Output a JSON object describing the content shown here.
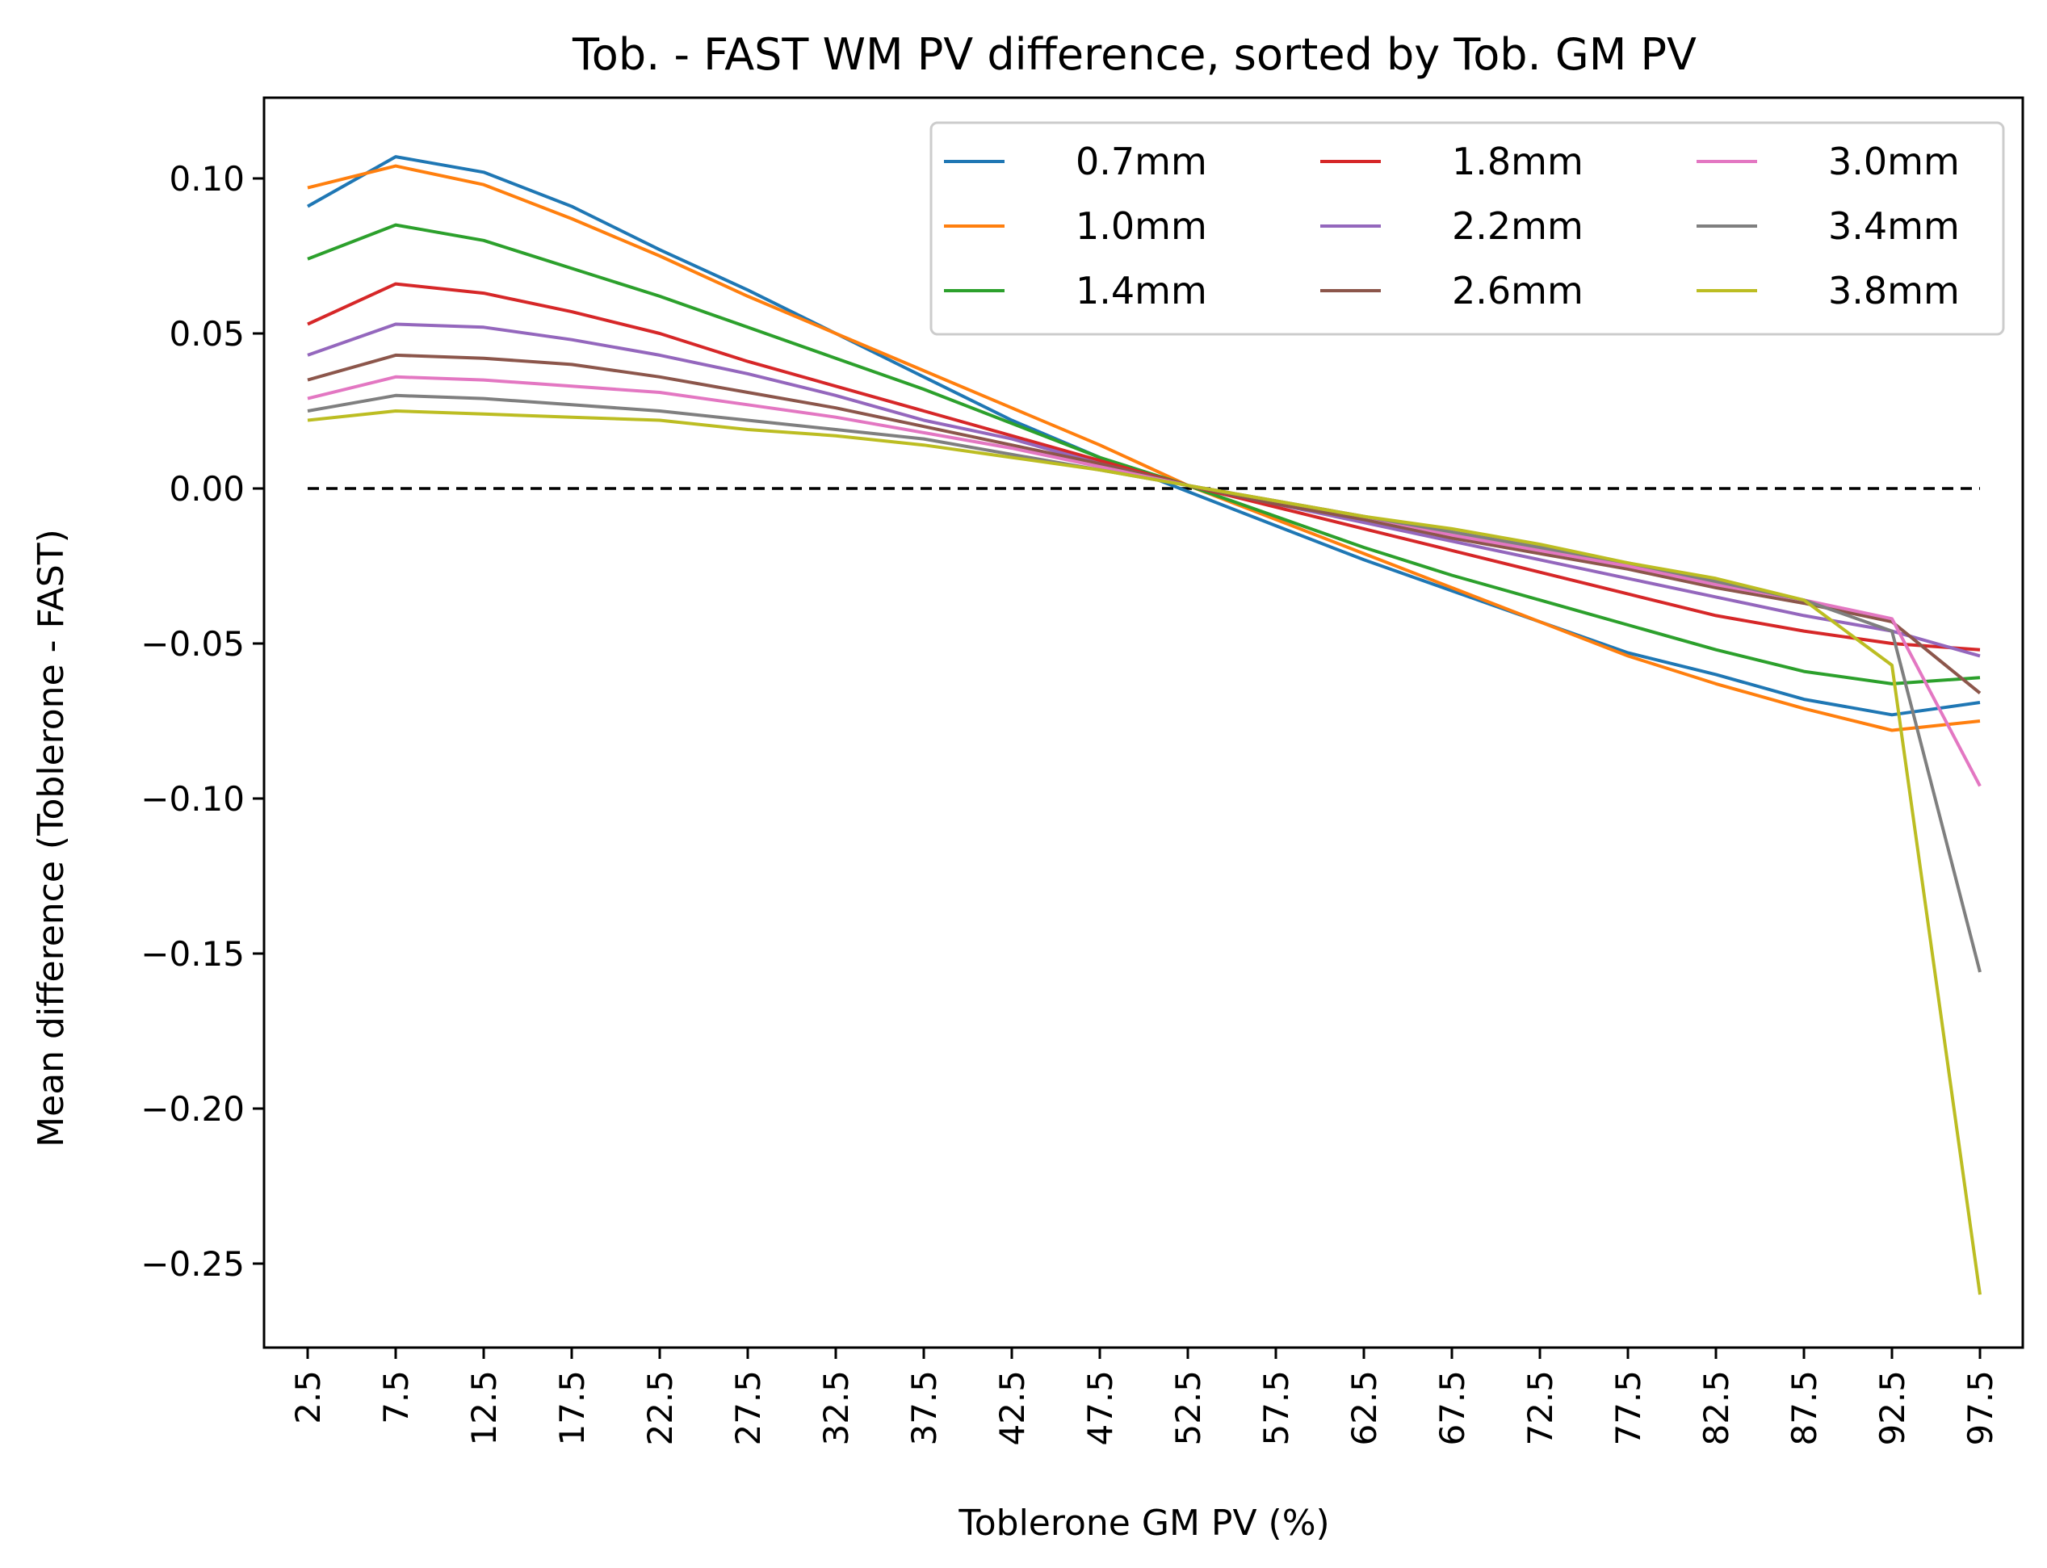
{
  "chart_data": {
    "type": "line",
    "title": "Tob. - FAST WM PV difference, sorted by Tob. GM PV",
    "xlabel": "Toblerone GM PV (%)",
    "ylabel": "Mean difference (Toblerone - FAST)",
    "ylim": [
      -0.28,
      0.125
    ],
    "grid": false,
    "legend_placement": "top-right",
    "legend_columns": 3,
    "x": [
      2.5,
      7.5,
      12.5,
      17.5,
      22.5,
      27.5,
      32.5,
      37.5,
      42.5,
      47.5,
      52.5,
      57.5,
      62.5,
      67.5,
      72.5,
      77.5,
      82.5,
      87.5,
      92.5,
      97.5
    ],
    "x_tick_labels": [
      "2.5",
      "7.5",
      "12.5",
      "17.5",
      "22.5",
      "27.5",
      "32.5",
      "37.5",
      "42.5",
      "47.5",
      "52.5",
      "57.5",
      "62.5",
      "67.5",
      "72.5",
      "77.5",
      "82.5",
      "87.5",
      "92.5",
      "97.5"
    ],
    "y_ticks": [
      0.1,
      0.05,
      0.0,
      -0.05,
      -0.1,
      -0.15,
      -0.2,
      -0.25
    ],
    "y_tick_labels": [
      "0.10",
      "0.05",
      "0.00",
      "−0.05",
      "−0.10",
      "−0.15",
      "−0.20",
      "−0.25"
    ],
    "reference_line": {
      "y": 0.0,
      "style": "dashed",
      "color": "#000000"
    },
    "series": [
      {
        "name": "0.7mm",
        "color": "#1f77b4",
        "values": [
          0.091,
          0.107,
          0.102,
          0.091,
          0.077,
          0.064,
          0.05,
          0.036,
          0.022,
          0.01,
          -0.001,
          -0.012,
          -0.023,
          -0.033,
          -0.043,
          -0.053,
          -0.06,
          -0.068,
          -0.073,
          -0.069
        ]
      },
      {
        "name": "1.0mm",
        "color": "#ff7f0e",
        "values": [
          0.097,
          0.104,
          0.098,
          0.087,
          0.075,
          0.062,
          0.05,
          0.038,
          0.026,
          0.014,
          0.001,
          -0.01,
          -0.021,
          -0.032,
          -0.043,
          -0.054,
          -0.063,
          -0.071,
          -0.078,
          -0.075
        ]
      },
      {
        "name": "1.4mm",
        "color": "#2ca02c",
        "values": [
          0.074,
          0.085,
          0.08,
          0.071,
          0.062,
          0.052,
          0.042,
          0.032,
          0.021,
          0.01,
          0.001,
          -0.009,
          -0.019,
          -0.028,
          -0.036,
          -0.044,
          -0.052,
          -0.059,
          -0.063,
          -0.061
        ]
      },
      {
        "name": "1.8mm",
        "color": "#d62728",
        "values": [
          0.053,
          0.066,
          0.063,
          0.057,
          0.05,
          0.041,
          0.033,
          0.025,
          0.017,
          0.009,
          0.001,
          -0.006,
          -0.013,
          -0.02,
          -0.027,
          -0.034,
          -0.041,
          -0.046,
          -0.05,
          -0.052
        ]
      },
      {
        "name": "2.2mm",
        "color": "#9467bd",
        "values": [
          0.043,
          0.053,
          0.052,
          0.048,
          0.043,
          0.037,
          0.03,
          0.022,
          0.016,
          0.008,
          0.001,
          -0.005,
          -0.011,
          -0.017,
          -0.023,
          -0.029,
          -0.035,
          -0.041,
          -0.046,
          -0.054
        ]
      },
      {
        "name": "2.6mm",
        "color": "#8c564b",
        "values": [
          0.035,
          0.043,
          0.042,
          0.04,
          0.036,
          0.031,
          0.026,
          0.02,
          0.014,
          0.008,
          0.001,
          -0.005,
          -0.01,
          -0.016,
          -0.021,
          -0.026,
          -0.032,
          -0.037,
          -0.043,
          -0.066
        ]
      },
      {
        "name": "3.0mm",
        "color": "#e377c2",
        "values": [
          0.029,
          0.036,
          0.035,
          0.033,
          0.031,
          0.027,
          0.023,
          0.018,
          0.013,
          0.007,
          0.001,
          -0.004,
          -0.009,
          -0.015,
          -0.02,
          -0.025,
          -0.031,
          -0.036,
          -0.042,
          -0.096
        ]
      },
      {
        "name": "3.4mm",
        "color": "#7f7f7f",
        "values": [
          0.025,
          0.03,
          0.029,
          0.027,
          0.025,
          0.022,
          0.019,
          0.016,
          0.011,
          0.006,
          0.001,
          -0.004,
          -0.009,
          -0.014,
          -0.019,
          -0.024,
          -0.03,
          -0.036,
          -0.046,
          -0.156
        ]
      },
      {
        "name": "3.8mm",
        "color": "#bcbd22",
        "values": [
          0.022,
          0.025,
          0.024,
          0.023,
          0.022,
          0.019,
          0.017,
          0.014,
          0.01,
          0.006,
          0.001,
          -0.004,
          -0.009,
          -0.013,
          -0.018,
          -0.024,
          -0.029,
          -0.036,
          -0.057,
          -0.26
        ]
      }
    ]
  }
}
